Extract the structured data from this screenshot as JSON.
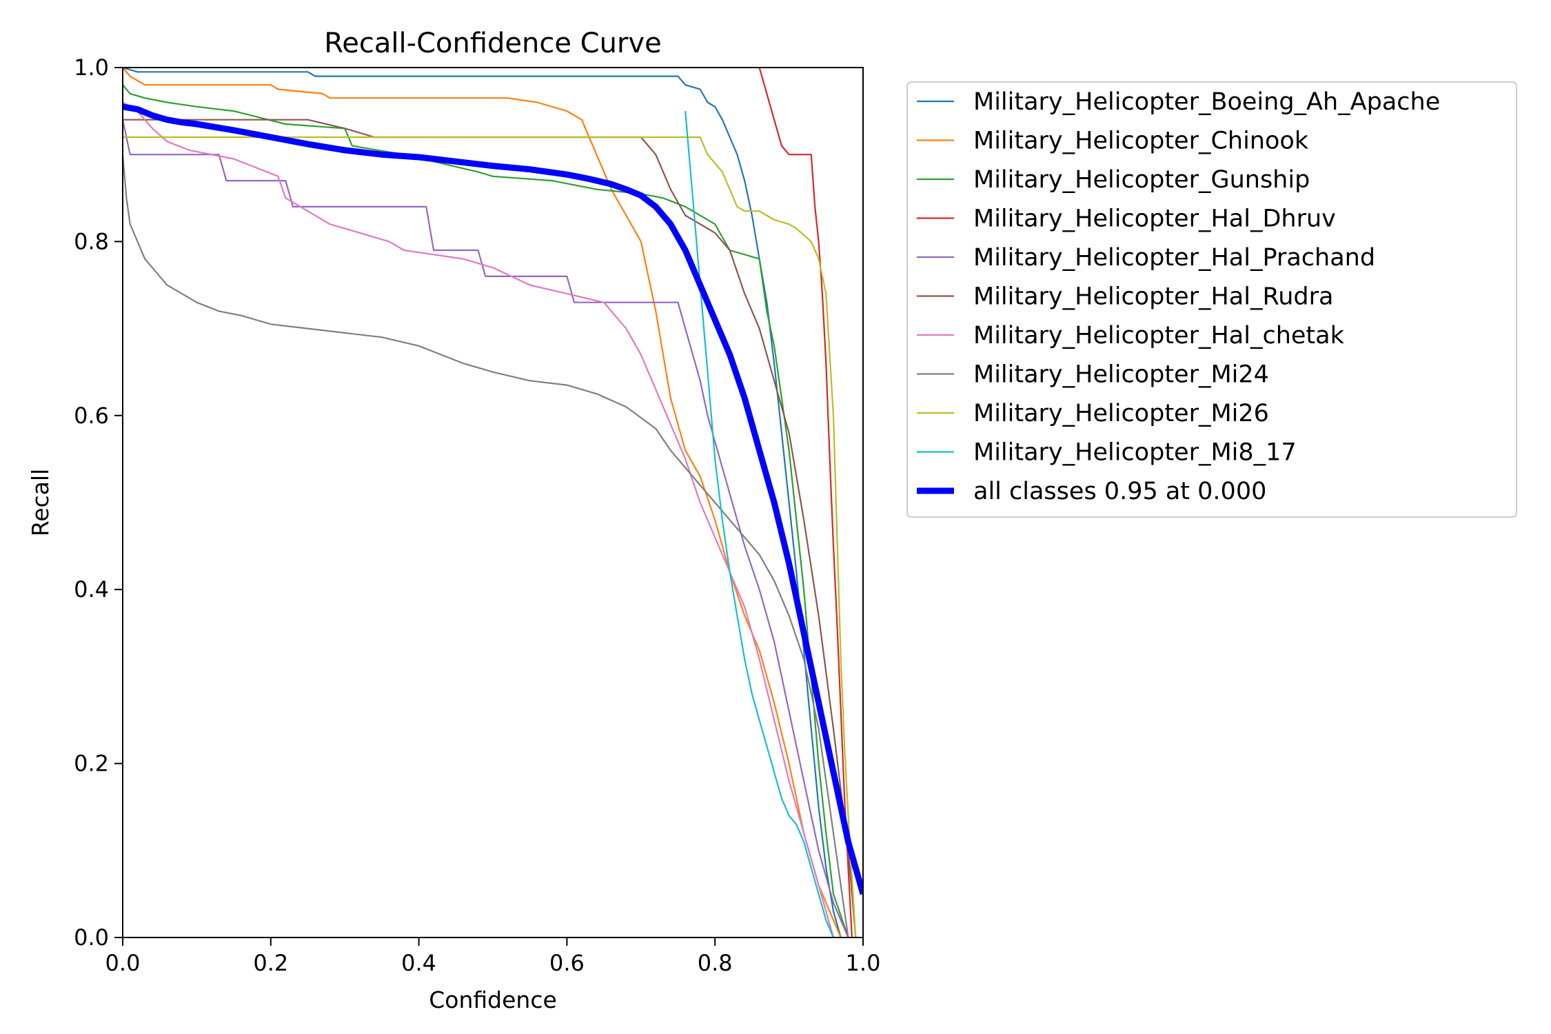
{
  "chart_data": {
    "type": "line",
    "title": "Recall-Confidence Curve",
    "xlabel": "Confidence",
    "ylabel": "Recall",
    "xlim": [
      0,
      1
    ],
    "ylim": [
      0,
      1
    ],
    "xticks": [
      "0.0",
      "0.2",
      "0.4",
      "0.6",
      "0.8",
      "1.0"
    ],
    "yticks": [
      "0.0",
      "0.2",
      "0.4",
      "0.6",
      "0.8",
      "1.0"
    ],
    "grid": false,
    "legend_placement": "outside-upper-right",
    "series": [
      {
        "name": "Military_Helicopter_Boeing_Ah_Apache",
        "color": "#1f77b4",
        "x": [
          0,
          0.02,
          0.25,
          0.26,
          0.75,
          0.76,
          0.78,
          0.79,
          0.8,
          0.81,
          0.82,
          0.83,
          0.84,
          0.85,
          0.86,
          0.87,
          0.88,
          0.89,
          0.9,
          0.91,
          0.92,
          0.93,
          0.94,
          0.95,
          0.96,
          0.97
        ],
        "y": [
          1.0,
          0.995,
          0.995,
          0.99,
          0.99,
          0.98,
          0.975,
          0.96,
          0.955,
          0.94,
          0.92,
          0.9,
          0.87,
          0.83,
          0.78,
          0.73,
          0.66,
          0.58,
          0.5,
          0.42,
          0.33,
          0.24,
          0.15,
          0.08,
          0.03,
          0.0
        ]
      },
      {
        "name": "Military_Helicopter_Chinook",
        "color": "#ff7f0e",
        "x": [
          0,
          0.01,
          0.02,
          0.03,
          0.2,
          0.21,
          0.27,
          0.28,
          0.52,
          0.56,
          0.6,
          0.62,
          0.64,
          0.66,
          0.68,
          0.7,
          0.72,
          0.74,
          0.76,
          0.78,
          0.8,
          0.82,
          0.84,
          0.86,
          0.88,
          0.9,
          0.92,
          0.94,
          0.96,
          0.97
        ],
        "y": [
          1.0,
          0.99,
          0.985,
          0.98,
          0.98,
          0.975,
          0.97,
          0.965,
          0.965,
          0.96,
          0.95,
          0.94,
          0.9,
          0.86,
          0.83,
          0.8,
          0.72,
          0.62,
          0.56,
          0.53,
          0.48,
          0.42,
          0.37,
          0.33,
          0.27,
          0.2,
          0.12,
          0.06,
          0.02,
          0.0
        ]
      },
      {
        "name": "Military_Helicopter_Gunship",
        "color": "#2ca02c",
        "x": [
          0,
          0.01,
          0.03,
          0.06,
          0.1,
          0.15,
          0.22,
          0.3,
          0.31,
          0.38,
          0.48,
          0.5,
          0.58,
          0.64,
          0.7,
          0.73,
          0.76,
          0.8,
          0.82,
          0.86,
          0.87,
          0.88,
          0.89,
          0.9,
          0.91,
          0.92,
          0.93,
          0.94,
          0.95,
          0.96,
          0.98
        ],
        "y": [
          0.98,
          0.97,
          0.965,
          0.96,
          0.955,
          0.95,
          0.935,
          0.93,
          0.91,
          0.9,
          0.88,
          0.875,
          0.87,
          0.86,
          0.855,
          0.85,
          0.84,
          0.82,
          0.79,
          0.78,
          0.72,
          0.68,
          0.62,
          0.56,
          0.48,
          0.4,
          0.3,
          0.2,
          0.12,
          0.05,
          0.0
        ]
      },
      {
        "name": "Military_Helicopter_Hal_Dhruv",
        "color": "#d62728",
        "x": [
          0.86,
          0.87,
          0.88,
          0.89,
          0.9,
          0.93,
          0.935,
          0.94,
          0.945,
          0.95,
          0.955,
          0.96,
          0.965,
          0.97,
          0.975,
          0.98,
          0.985
        ],
        "y": [
          1.0,
          0.97,
          0.94,
          0.91,
          0.9,
          0.9,
          0.84,
          0.8,
          0.74,
          0.66,
          0.55,
          0.45,
          0.36,
          0.26,
          0.16,
          0.08,
          0.0
        ]
      },
      {
        "name": "Military_Helicopter_Hal_Prachand",
        "color": "#9467bd",
        "x": [
          0,
          0.01,
          0.13,
          0.14,
          0.22,
          0.23,
          0.41,
          0.42,
          0.48,
          0.49,
          0.6,
          0.61,
          0.75,
          0.76,
          0.77,
          0.78,
          0.79,
          0.8,
          0.81,
          0.82,
          0.83,
          0.84,
          0.86,
          0.88,
          0.9,
          0.92,
          0.94,
          0.96,
          0.98
        ],
        "y": [
          0.94,
          0.9,
          0.9,
          0.87,
          0.87,
          0.84,
          0.84,
          0.79,
          0.79,
          0.76,
          0.76,
          0.73,
          0.73,
          0.7,
          0.67,
          0.64,
          0.6,
          0.57,
          0.54,
          0.51,
          0.48,
          0.45,
          0.4,
          0.34,
          0.26,
          0.18,
          0.1,
          0.04,
          0.0
        ]
      },
      {
        "name": "Military_Helicopter_Hal_Rudra",
        "color": "#8c564b",
        "x": [
          0,
          0.25,
          0.3,
          0.34,
          0.7,
          0.72,
          0.74,
          0.76,
          0.8,
          0.82,
          0.84,
          0.86,
          0.88,
          0.9,
          0.92,
          0.94,
          0.96,
          0.98,
          0.99
        ],
        "y": [
          0.94,
          0.94,
          0.93,
          0.92,
          0.92,
          0.9,
          0.86,
          0.83,
          0.81,
          0.79,
          0.74,
          0.7,
          0.64,
          0.58,
          0.48,
          0.37,
          0.24,
          0.1,
          0.0
        ]
      },
      {
        "name": "Military_Helicopter_Hal_chetak",
        "color": "#e377c2",
        "x": [
          0,
          0.02,
          0.04,
          0.06,
          0.09,
          0.12,
          0.15,
          0.18,
          0.21,
          0.22,
          0.24,
          0.28,
          0.32,
          0.36,
          0.38,
          0.42,
          0.46,
          0.5,
          0.55,
          0.6,
          0.65,
          0.68,
          0.7,
          0.72,
          0.74,
          0.76,
          0.78,
          0.8,
          0.82,
          0.84,
          0.86,
          0.88,
          0.9,
          0.92,
          0.94,
          0.96
        ],
        "y": [
          0.96,
          0.95,
          0.93,
          0.915,
          0.905,
          0.9,
          0.895,
          0.885,
          0.875,
          0.85,
          0.84,
          0.82,
          0.81,
          0.8,
          0.79,
          0.785,
          0.78,
          0.77,
          0.75,
          0.74,
          0.73,
          0.7,
          0.67,
          0.63,
          0.59,
          0.55,
          0.5,
          0.46,
          0.42,
          0.38,
          0.32,
          0.25,
          0.18,
          0.12,
          0.06,
          0.0
        ]
      },
      {
        "name": "Military_Helicopter_Mi24",
        "color": "#7f7f7f",
        "x": [
          0,
          0.005,
          0.01,
          0.02,
          0.03,
          0.04,
          0.05,
          0.06,
          0.08,
          0.1,
          0.13,
          0.16,
          0.2,
          0.25,
          0.3,
          0.35,
          0.4,
          0.43,
          0.46,
          0.5,
          0.55,
          0.6,
          0.64,
          0.68,
          0.72,
          0.74,
          0.76,
          0.78,
          0.8,
          0.82,
          0.84,
          0.86,
          0.88,
          0.9,
          0.92,
          0.94,
          0.96,
          0.98
        ],
        "y": [
          0.9,
          0.85,
          0.82,
          0.8,
          0.78,
          0.77,
          0.76,
          0.75,
          0.74,
          0.73,
          0.72,
          0.715,
          0.705,
          0.7,
          0.695,
          0.69,
          0.68,
          0.67,
          0.66,
          0.65,
          0.64,
          0.635,
          0.625,
          0.61,
          0.585,
          0.56,
          0.54,
          0.52,
          0.5,
          0.48,
          0.46,
          0.44,
          0.41,
          0.37,
          0.32,
          0.24,
          0.12,
          0.0
        ]
      },
      {
        "name": "Military_Helicopter_Mi26",
        "color": "#bcbd22",
        "x": [
          0,
          0.01,
          0.78,
          0.79,
          0.8,
          0.81,
          0.83,
          0.84,
          0.86,
          0.87,
          0.88,
          0.9,
          0.91,
          0.93,
          0.94,
          0.95,
          0.96,
          0.965,
          0.97,
          0.975,
          0.98,
          0.985,
          0.99
        ],
        "y": [
          0.92,
          0.92,
          0.92,
          0.9,
          0.89,
          0.88,
          0.84,
          0.835,
          0.835,
          0.83,
          0.825,
          0.82,
          0.815,
          0.8,
          0.78,
          0.74,
          0.6,
          0.46,
          0.32,
          0.22,
          0.14,
          0.07,
          0.0
        ]
      },
      {
        "name": "Military_Helicopter_Mi8_17",
        "color": "#17becf",
        "x": [
          0.76,
          0.765,
          0.77,
          0.775,
          0.78,
          0.785,
          0.79,
          0.8,
          0.81,
          0.82,
          0.83,
          0.84,
          0.85,
          0.86,
          0.87,
          0.88,
          0.89,
          0.9,
          0.91,
          0.92,
          0.93,
          0.94,
          0.95,
          0.96
        ],
        "y": [
          0.95,
          0.9,
          0.85,
          0.8,
          0.75,
          0.7,
          0.65,
          0.55,
          0.48,
          0.42,
          0.37,
          0.32,
          0.28,
          0.25,
          0.22,
          0.19,
          0.16,
          0.14,
          0.13,
          0.11,
          0.08,
          0.05,
          0.02,
          0.0
        ]
      },
      {
        "name": "all classes 0.95 at 0.000",
        "color": "#0000ff",
        "bold": true,
        "x": [
          0,
          0.02,
          0.04,
          0.06,
          0.08,
          0.1,
          0.15,
          0.2,
          0.25,
          0.3,
          0.35,
          0.4,
          0.45,
          0.5,
          0.55,
          0.6,
          0.63,
          0.66,
          0.68,
          0.7,
          0.72,
          0.74,
          0.76,
          0.78,
          0.8,
          0.82,
          0.84,
          0.86,
          0.88,
          0.9,
          0.92,
          0.94,
          0.96,
          0.98,
          1.0
        ],
        "y": [
          0.955,
          0.952,
          0.945,
          0.94,
          0.937,
          0.935,
          0.928,
          0.92,
          0.912,
          0.905,
          0.9,
          0.897,
          0.892,
          0.887,
          0.883,
          0.877,
          0.872,
          0.866,
          0.86,
          0.853,
          0.84,
          0.82,
          0.79,
          0.75,
          0.71,
          0.67,
          0.62,
          0.56,
          0.5,
          0.43,
          0.35,
          0.27,
          0.19,
          0.11,
          0.05
        ]
      }
    ]
  }
}
